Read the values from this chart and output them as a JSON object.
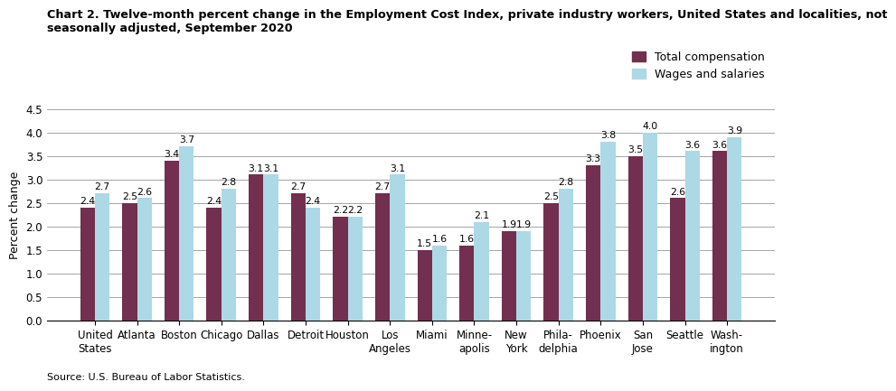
{
  "title_line1": "Chart 2. Twelve-month percent change in the Employment Cost Index, private industry workers, United States and localities, not",
  "title_line2": "seasonally adjusted, September 2020",
  "ylabel": "Percent change",
  "source": "Source: U.S. Bureau of Labor Statistics.",
  "categories": [
    "United\nStates",
    "Atlanta",
    "Boston",
    "Chicago",
    "Dallas",
    "Detroit",
    "Houston",
    "Los\nAngeles",
    "Miami",
    "Minne-\napolis",
    "New\nYork",
    "Phila-\ndelphia",
    "Phoenix",
    "San\nJose",
    "Seattle",
    "Wash-\nington"
  ],
  "total_compensation": [
    2.4,
    2.5,
    3.4,
    2.4,
    3.1,
    2.7,
    2.2,
    2.7,
    1.5,
    1.6,
    1.9,
    2.5,
    3.3,
    3.5,
    2.6,
    3.6
  ],
  "wages_and_salaries": [
    2.7,
    2.6,
    3.7,
    2.8,
    3.1,
    2.4,
    2.2,
    3.1,
    1.6,
    2.1,
    1.9,
    2.8,
    3.8,
    4.0,
    3.6,
    3.9
  ],
  "color_total": "#722F4F",
  "color_wages": "#ADD8E6",
  "ylim": [
    0.0,
    4.5
  ],
  "yticks": [
    0.0,
    0.5,
    1.0,
    1.5,
    2.0,
    2.5,
    3.0,
    3.5,
    4.0,
    4.5
  ],
  "legend_total": "Total compensation",
  "legend_wages": "Wages and salaries",
  "bar_width": 0.35,
  "title_fontsize": 9.2,
  "axis_fontsize": 9,
  "label_fontsize": 7.8,
  "tick_fontsize": 8.5
}
